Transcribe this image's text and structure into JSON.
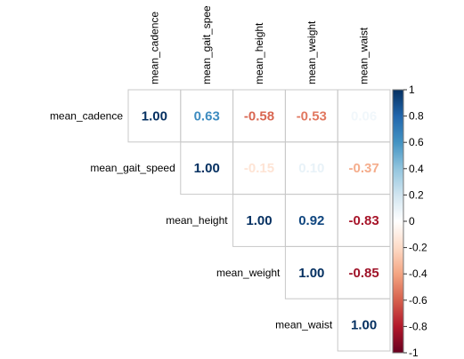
{
  "chart_data": {
    "type": "heatmap",
    "subtype": "correlation-matrix-upper",
    "variables": [
      "mean_cadence",
      "mean_gait_speed",
      "mean_height",
      "mean_weight",
      "mean_waist"
    ],
    "column_labels": [
      "mean_cadence",
      "mean_gait_spee",
      "mean_height",
      "mean_weight",
      "mean_waist"
    ],
    "matrix": [
      [
        1.0,
        0.63,
        -0.58,
        -0.53,
        0.06
      ],
      [
        null,
        1.0,
        -0.15,
        0.1,
        -0.37
      ],
      [
        null,
        null,
        1.0,
        0.92,
        -0.83
      ],
      [
        null,
        null,
        null,
        1.0,
        -0.85
      ],
      [
        null,
        null,
        null,
        null,
        1.0
      ]
    ],
    "value_labels": [
      [
        "1.00",
        "0.63",
        "-0.58",
        "-0.53",
        "0.06"
      ],
      [
        null,
        "1.00",
        "-0.15",
        "0.10",
        "-0.37"
      ],
      [
        null,
        null,
        "1.00",
        "0.92",
        "-0.83"
      ],
      [
        null,
        null,
        null,
        "1.00",
        "-0.85"
      ],
      [
        null,
        null,
        null,
        null,
        "1.00"
      ]
    ],
    "colorbar": {
      "range": [
        -1,
        1
      ],
      "ticks": [
        1,
        0.8,
        0.6,
        0.4,
        0.2,
        0,
        -0.2,
        -0.4,
        -0.6,
        -0.8,
        -1
      ],
      "tick_labels": [
        "1",
        "0.8",
        "0.6",
        "0.4",
        "0.2",
        "0",
        "-0.2",
        "-0.4",
        "-0.6",
        "-0.8",
        "-1"
      ],
      "colors": [
        "#67001F",
        "#B2182B",
        "#D6604D",
        "#F4A582",
        "#FDDBC7",
        "#FFFFFF",
        "#D1E5F0",
        "#92C5DE",
        "#4393C3",
        "#2166AC",
        "#053061"
      ]
    },
    "legend_position": "right",
    "grid": true
  }
}
